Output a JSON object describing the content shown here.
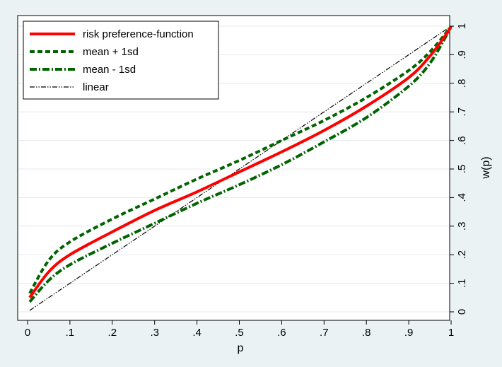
{
  "chart_data": {
    "type": "line",
    "title": "",
    "xlabel": "p",
    "ylabel": "w(p)",
    "xlim": [
      0,
      1
    ],
    "ylim": [
      0,
      1
    ],
    "x_ticks": [
      0,
      0.1,
      0.2,
      0.3,
      0.4,
      0.5,
      0.6,
      0.7,
      0.8,
      0.9,
      1
    ],
    "x_tick_labels": [
      "0",
      ".1",
      ".2",
      ".3",
      ".4",
      ".5",
      ".6",
      ".7",
      ".8",
      ".9",
      "1"
    ],
    "y_ticks": [
      0,
      0.1,
      0.2,
      0.3,
      0.4,
      0.5,
      0.6,
      0.7,
      0.8,
      0.9,
      1
    ],
    "y_tick_labels": [
      "0",
      ".1",
      ".2",
      ".3",
      ".4",
      ".5",
      ".6",
      ".7",
      ".8",
      ".9",
      "1"
    ],
    "y_axis_side": "right",
    "grid": "horizontal",
    "legend_position": "top-left",
    "x": [
      0.005,
      0.05,
      0.1,
      0.2,
      0.3,
      0.4,
      0.5,
      0.6,
      0.7,
      0.8,
      0.9,
      0.95,
      0.99,
      1.0
    ],
    "series": [
      {
        "name": "risk preference-function",
        "color": "#ff0000",
        "style": "solid",
        "values": [
          0.05,
          0.14,
          0.2,
          0.28,
          0.355,
          0.42,
          0.49,
          0.56,
          0.635,
          0.72,
          0.82,
          0.895,
          0.975,
          1.0
        ]
      },
      {
        "name": "mean + 1sd",
        "color": "#006400",
        "style": "dashed",
        "values": [
          0.065,
          0.18,
          0.245,
          0.325,
          0.395,
          0.465,
          0.53,
          0.6,
          0.67,
          0.75,
          0.845,
          0.91,
          0.98,
          1.0
        ]
      },
      {
        "name": "mean - 1sd",
        "color": "#006400",
        "style": "dash-dot",
        "values": [
          0.035,
          0.11,
          0.165,
          0.24,
          0.31,
          0.38,
          0.445,
          0.515,
          0.595,
          0.68,
          0.79,
          0.87,
          0.97,
          1.0
        ]
      },
      {
        "name": "linear",
        "color": "#000000",
        "style": "dash-dot-thin",
        "values": [
          0.005,
          0.05,
          0.1,
          0.2,
          0.3,
          0.4,
          0.5,
          0.6,
          0.7,
          0.8,
          0.9,
          0.95,
          0.99,
          1.0
        ]
      }
    ]
  }
}
